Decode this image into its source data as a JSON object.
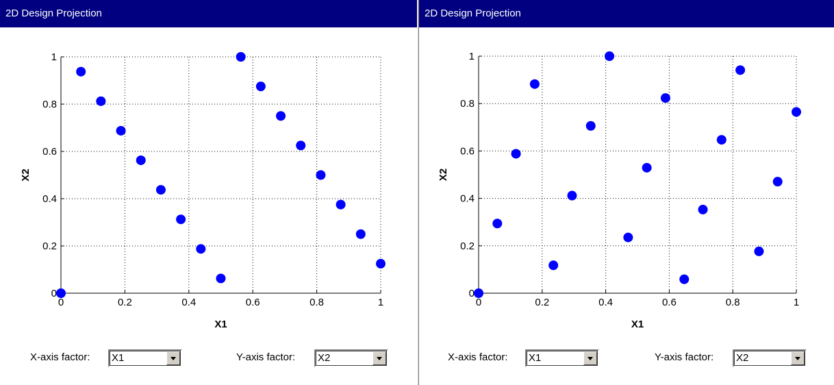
{
  "panels": [
    {
      "title": "2D Design Projection",
      "x_label_prompt": "X-axis factor:",
      "y_label_prompt": "Y-axis factor:",
      "x_factor": "X1",
      "y_factor": "X2"
    },
    {
      "title": "2D Design Projection",
      "x_label_prompt": "X-axis factor:",
      "y_label_prompt": "Y-axis factor:",
      "x_factor": "X1",
      "y_factor": "X2"
    }
  ],
  "colors": {
    "marker": "#0000ff",
    "titlebar": "#000080"
  },
  "chart_data": [
    {
      "type": "scatter",
      "title": "",
      "xlabel": "X1",
      "ylabel": "X2",
      "xlim": [
        0,
        1
      ],
      "ylim": [
        0,
        1
      ],
      "xticks": [
        "0",
        "0.2",
        "0.4",
        "0.6",
        "0.8",
        "1"
      ],
      "yticks": [
        "0",
        "0.2",
        "0.4",
        "0.6",
        "0.8",
        "1"
      ],
      "grid": true,
      "x": [
        0,
        0.0625,
        0.125,
        0.1875,
        0.25,
        0.3125,
        0.375,
        0.4375,
        0.5,
        0.5625,
        0.625,
        0.6875,
        0.75,
        0.8125,
        0.875,
        0.9375,
        1.0
      ],
      "y": [
        0,
        0.9375,
        0.8125,
        0.6875,
        0.5625,
        0.4375,
        0.3125,
        0.1875,
        0.0625,
        1.0,
        0.875,
        0.75,
        0.625,
        0.5,
        0.375,
        0.25,
        0.125
      ]
    },
    {
      "type": "scatter",
      "title": "",
      "xlabel": "X1",
      "ylabel": "X2",
      "xlim": [
        0,
        1
      ],
      "ylim": [
        0,
        1
      ],
      "xticks": [
        "0",
        "0.2",
        "0.4",
        "0.6",
        "0.8",
        "1"
      ],
      "yticks": [
        "0",
        "0.2",
        "0.4",
        "0.6",
        "0.8",
        "1"
      ],
      "grid": true,
      "x": [
        0,
        0.0588,
        0.1176,
        0.1765,
        0.2353,
        0.2941,
        0.3529,
        0.4118,
        0.4706,
        0.5294,
        0.5882,
        0.6471,
        0.7059,
        0.7647,
        0.8235,
        0.8824,
        0.9412,
        1.0
      ],
      "y": [
        0,
        0.2941,
        0.5882,
        0.8824,
        0.1176,
        0.4118,
        0.7059,
        1.0,
        0.2353,
        0.5294,
        0.8235,
        0.0588,
        0.3529,
        0.6471,
        0.9412,
        0.1765,
        0.4706,
        0.7647
      ]
    }
  ]
}
